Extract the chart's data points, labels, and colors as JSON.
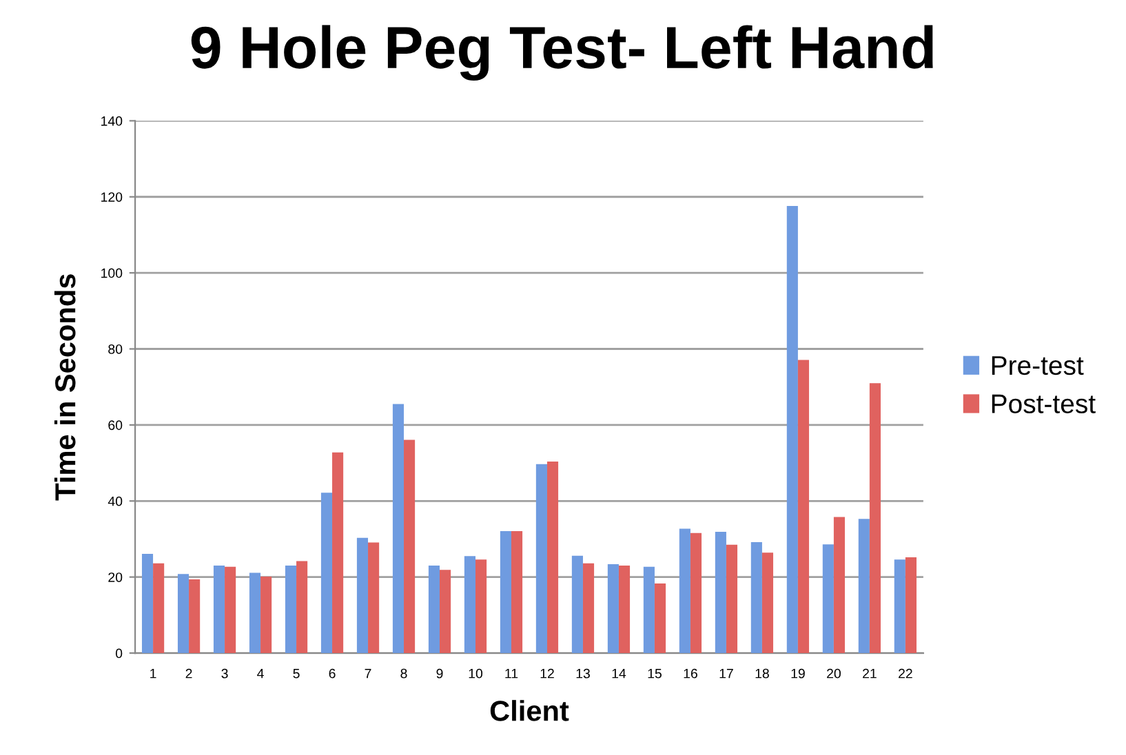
{
  "chart_data": {
    "type": "bar",
    "title": "9 Hole Peg Test- Left Hand",
    "xlabel": "Client",
    "ylabel": "Time in Seconds",
    "categories": [
      "1",
      "2",
      "3",
      "4",
      "5",
      "6",
      "7",
      "8",
      "9",
      "10",
      "11",
      "12",
      "13",
      "14",
      "15",
      "16",
      "17",
      "18",
      "19",
      "20",
      "21",
      "22"
    ],
    "series": [
      {
        "name": "Pre-test",
        "color": "#6f9be0",
        "values": [
          26.1,
          20.8,
          23.0,
          21.1,
          23.0,
          42.2,
          30.3,
          65.5,
          23.0,
          25.5,
          32.1,
          49.7,
          25.6,
          23.4,
          22.7,
          32.7,
          31.9,
          29.2,
          117.6,
          28.6,
          35.3,
          24.6
        ]
      },
      {
        "name": "Post-test",
        "color": "#e0625f",
        "values": [
          23.6,
          19.4,
          22.7,
          20.1,
          24.2,
          52.8,
          29.1,
          56.1,
          21.9,
          24.6,
          32.1,
          50.4,
          23.6,
          23.0,
          18.3,
          31.6,
          28.5,
          26.4,
          77.1,
          35.8,
          71.0,
          25.2
        ]
      }
    ],
    "ylim": [
      0,
      140
    ],
    "yticks": [
      0,
      20,
      40,
      60,
      80,
      100,
      120,
      140
    ],
    "grid": "y",
    "legend": "right"
  }
}
